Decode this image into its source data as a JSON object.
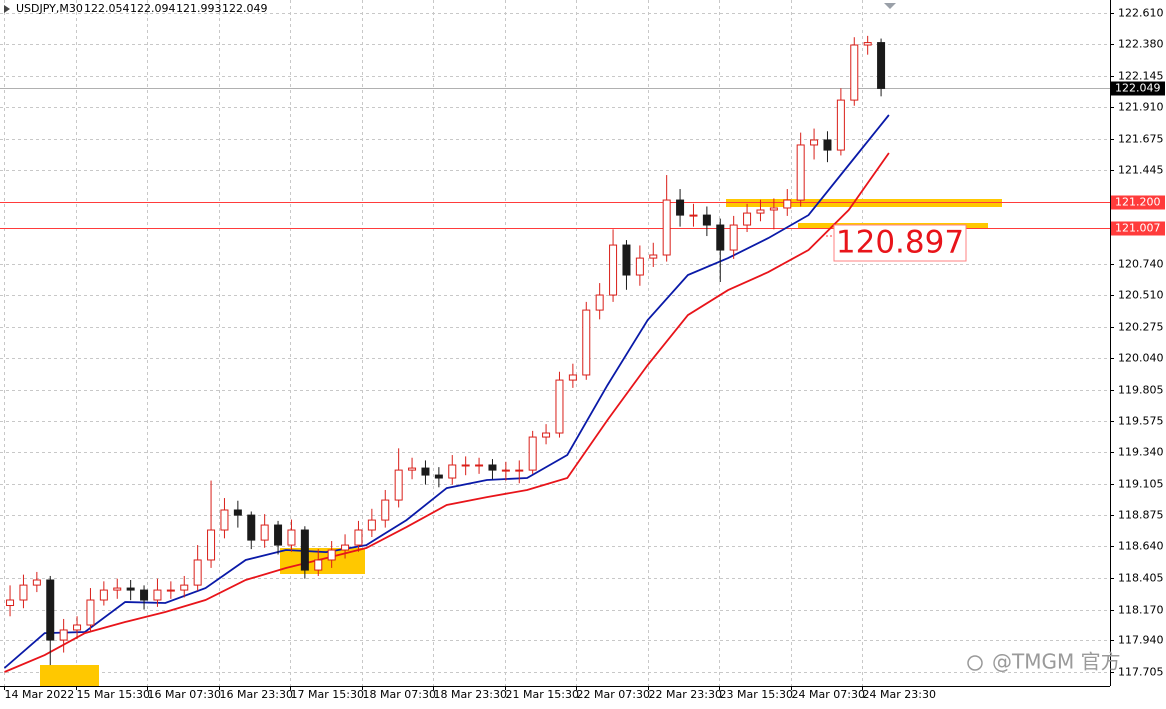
{
  "chart_data": {
    "type": "candlestick",
    "symbol": "USDJPY,M30",
    "header_quotes": [
      122.054,
      122.094,
      121.993,
      122.049
    ],
    "xlim": [
      -2,
      495
    ],
    "ylim": [
      117.601,
      122.707
    ],
    "grid": true,
    "up_color": "#d91e18",
    "down_color": "#1a1a1a",
    "xticks": [
      {
        "value": 0,
        "label": "14 Mar 2022"
      },
      {
        "value": 32,
        "label": "15 Mar 15:30"
      },
      {
        "value": 64,
        "label": "16 Mar 07:30"
      },
      {
        "value": 96,
        "label": "16 Mar 23:30"
      },
      {
        "value": 128,
        "label": "17 Mar 15:30"
      },
      {
        "value": 160,
        "label": "18 Mar 07:30"
      },
      {
        "value": 192,
        "label": "18 Mar 23:30"
      },
      {
        "value": 224,
        "label": "21 Mar 15:30"
      },
      {
        "value": 256,
        "label": "22 Mar 07:30"
      },
      {
        "value": 288,
        "label": "22 Mar 23:30"
      },
      {
        "value": 320,
        "label": "23 Mar 15:30"
      },
      {
        "value": 352,
        "label": "24 Mar 07:30"
      },
      {
        "value": 384,
        "label": "24 Mar 23:30"
      }
    ],
    "yticks": [
      {
        "value": 122.61,
        "label": "122.610"
      },
      {
        "value": 122.38,
        "label": "122.380"
      },
      {
        "value": 122.145,
        "label": "122.145"
      },
      {
        "value": 121.91,
        "label": "121.910"
      },
      {
        "value": 121.675,
        "label": "121.675"
      },
      {
        "value": 121.445,
        "label": "121.445"
      },
      {
        "value": 120.74,
        "label": "120.740"
      },
      {
        "value": 120.51,
        "label": "120.510"
      },
      {
        "value": 120.275,
        "label": "120.275"
      },
      {
        "value": 120.04,
        "label": "120.040"
      },
      {
        "value": 119.805,
        "label": "119.805"
      },
      {
        "value": 119.575,
        "label": "119.575"
      },
      {
        "value": 119.34,
        "label": "119.340"
      },
      {
        "value": 119.105,
        "label": "119.105"
      },
      {
        "value": 118.875,
        "label": "118.875"
      },
      {
        "value": 118.64,
        "label": "118.640"
      },
      {
        "value": 118.405,
        "label": "118.405"
      },
      {
        "value": 118.17,
        "label": "118.170"
      },
      {
        "value": 117.94,
        "label": "117.940"
      },
      {
        "value": 117.705,
        "label": "117.705"
      }
    ],
    "x": [
      2.5,
      8.5,
      14.5,
      20.5,
      26.5,
      32.5,
      38.5,
      44.5,
      50.5,
      56.5,
      62.5,
      68.5,
      74.5,
      80.5,
      86.5,
      92.5,
      98.5,
      104.5,
      110.5,
      116.5,
      122.5,
      128.5,
      134.5,
      140.5,
      146.5,
      152.5,
      158.5,
      164.5,
      170.5,
      176.5,
      182.5,
      188.5,
      194.5,
      200.5,
      206.5,
      212.5,
      218.5,
      224.5,
      230.5,
      236.5,
      242.5,
      248.5,
      254.5,
      260.5,
      266.5,
      272.5,
      278.5,
      284.5,
      290.5,
      296.5,
      302.5,
      308.5,
      314.5,
      320.5,
      326.5,
      332.5,
      338.5,
      344.5,
      350.5,
      356.5,
      362.5,
      368.5,
      374.5,
      380.5,
      386.5,
      392.5
    ],
    "open": [
      118.2,
      118.241,
      118.352,
      118.39,
      117.943,
      118.018,
      118.055,
      118.241,
      118.315,
      118.33,
      118.315,
      118.241,
      118.315,
      118.315,
      118.352,
      118.539,
      118.762,
      118.911,
      118.873,
      118.687,
      118.799,
      118.65,
      118.762,
      118.464,
      118.539,
      118.613,
      118.65,
      118.762,
      118.836,
      118.985,
      119.208,
      119.223,
      119.171,
      119.149,
      119.246,
      119.246,
      119.246,
      119.208,
      119.208,
      119.208,
      119.454,
      119.484,
      119.878,
      119.916,
      120.399,
      120.511,
      120.883,
      120.66,
      120.786,
      120.809,
      121.218,
      121.106,
      121.106,
      121.032,
      120.846,
      121.032,
      121.121,
      121.144,
      121.159,
      121.218,
      121.628,
      121.665,
      121.59,
      121.962,
      122.372,
      122.39
    ],
    "high": [
      118.35,
      118.43,
      118.45,
      118.42,
      118.1,
      118.12,
      118.33,
      118.38,
      118.4,
      118.39,
      118.35,
      118.4,
      118.38,
      118.42,
      118.65,
      119.13,
      119.0,
      118.98,
      118.9,
      118.88,
      118.83,
      118.84,
      118.79,
      118.62,
      118.68,
      118.73,
      118.83,
      118.92,
      119.06,
      119.37,
      119.3,
      119.28,
      119.23,
      119.32,
      119.31,
      119.3,
      119.29,
      119.27,
      119.28,
      119.5,
      119.55,
      119.94,
      120.0,
      120.46,
      120.6,
      121.0,
      120.92,
      120.88,
      120.9,
      121.404,
      121.3,
      121.19,
      121.17,
      121.08,
      121.1,
      121.19,
      121.22,
      121.23,
      121.3,
      121.72,
      121.75,
      121.73,
      122.05,
      122.43,
      122.44,
      122.42
    ],
    "low": [
      118.12,
      118.18,
      118.3,
      117.757,
      117.85,
      117.95,
      118.0,
      118.2,
      118.25,
      118.24,
      118.17,
      118.19,
      118.25,
      118.26,
      118.31,
      118.48,
      118.7,
      118.78,
      118.62,
      118.63,
      118.58,
      118.6,
      118.4,
      118.42,
      118.48,
      118.55,
      118.6,
      118.71,
      118.78,
      118.93,
      119.14,
      119.1,
      119.08,
      119.1,
      119.17,
      119.18,
      119.14,
      119.13,
      119.11,
      119.18,
      119.4,
      119.45,
      119.82,
      119.88,
      120.33,
      120.46,
      120.55,
      120.58,
      120.72,
      120.76,
      121.02,
      121.02,
      120.95,
      120.608,
      120.78,
      120.98,
      121.06,
      121.0,
      121.1,
      121.17,
      121.52,
      121.5,
      121.55,
      121.92,
      122.3,
      121.99
    ],
    "close": [
      118.241,
      118.352,
      118.39,
      117.943,
      118.018,
      118.055,
      118.241,
      118.315,
      118.33,
      118.315,
      118.241,
      118.315,
      118.315,
      118.352,
      118.539,
      118.762,
      118.911,
      118.873,
      118.687,
      118.799,
      118.65,
      118.762,
      118.464,
      118.539,
      118.613,
      118.65,
      118.762,
      118.836,
      118.985,
      119.208,
      119.223,
      119.171,
      119.149,
      119.246,
      119.246,
      119.246,
      119.208,
      119.208,
      119.208,
      119.454,
      119.484,
      119.878,
      119.916,
      120.399,
      120.511,
      120.883,
      120.66,
      120.786,
      120.809,
      121.218,
      121.106,
      121.106,
      121.032,
      120.846,
      121.032,
      121.121,
      121.144,
      121.159,
      121.218,
      121.628,
      121.665,
      121.59,
      121.962,
      122.372,
      122.39,
      122.049
    ],
    "ma_x": [
      0,
      18,
      36,
      54,
      72,
      90,
      108,
      126,
      144,
      162,
      180,
      198,
      216,
      234,
      252,
      270,
      288,
      306,
      324,
      342,
      360,
      378,
      396
    ],
    "moving_averages": [
      {
        "color": "#0a1aa8",
        "values": [
          117.735,
          117.995,
          118.003,
          118.226,
          118.219,
          118.33,
          118.539,
          118.613,
          118.598,
          118.65,
          118.836,
          119.074,
          119.134,
          119.149,
          119.32,
          119.841,
          120.325,
          120.66,
          120.786,
          120.935,
          121.106,
          121.479,
          121.851
        ]
      },
      {
        "color": "#e8141a",
        "values": [
          117.705,
          117.831,
          117.995,
          118.077,
          118.152,
          118.241,
          118.39,
          118.479,
          118.553,
          118.628,
          118.784,
          118.948,
          119.007,
          119.06,
          119.149,
          119.581,
          119.99,
          120.362,
          120.548,
          120.682,
          120.846,
          121.144,
          121.568
        ]
      }
    ],
    "levels": [
      {
        "value": 121.2,
        "label": "121.200",
        "color": "#ff3b3b"
      },
      {
        "value": 121.007,
        "label": "121.007",
        "color": "#ff3b3b"
      }
    ],
    "last_price": {
      "value": 122.049,
      "label": "122.049"
    },
    "annotation": 120.897,
    "watermark": "@TMGM 官方"
  }
}
